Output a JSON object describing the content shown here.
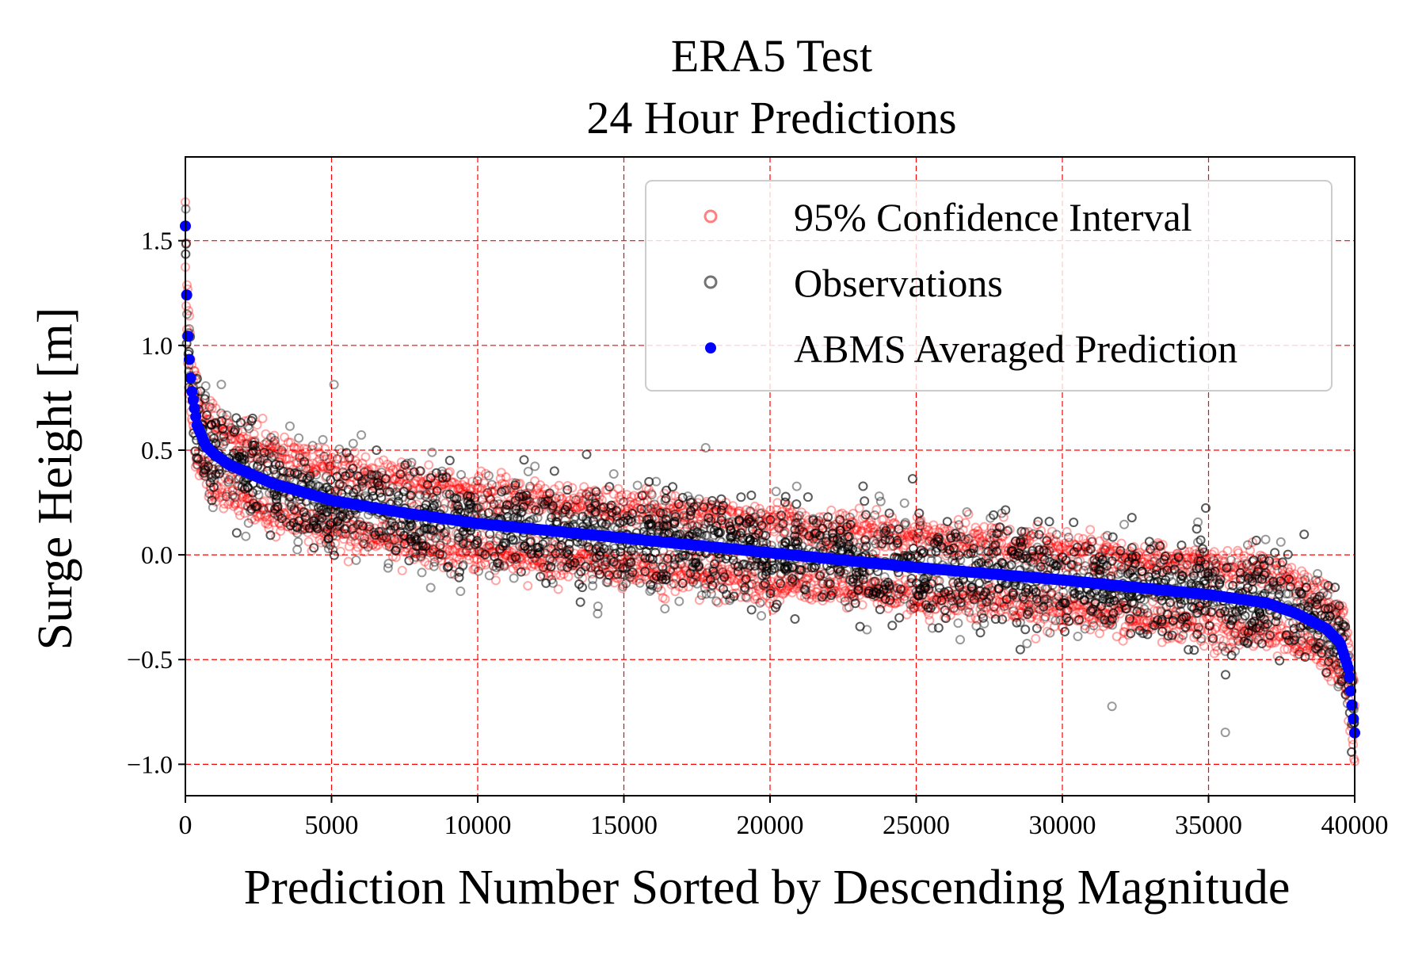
{
  "chart_data": {
    "type": "scatter",
    "title": [
      "ERA5 Test",
      "24 Hour Predictions"
    ],
    "xlabel": "Prediction Number Sorted by Descending Magnitude",
    "ylabel": "Surge Height [m]",
    "xlim": [
      0,
      40000
    ],
    "ylim": [
      -1.15,
      1.9
    ],
    "x_ticks": [
      0,
      5000,
      10000,
      15000,
      20000,
      25000,
      30000,
      35000,
      40000
    ],
    "x_tick_labels": [
      "0",
      "5000",
      "10000",
      "15000",
      "20000",
      "25000",
      "30000",
      "35000",
      "40000"
    ],
    "y_ticks": [
      -1.0,
      -0.5,
      0.0,
      0.5,
      1.0,
      1.5
    ],
    "y_tick_labels": [
      "−1.0",
      "−0.5",
      "0.0",
      "0.5",
      "1.0",
      "1.5"
    ],
    "grid": true,
    "grid_color": "#ff0000",
    "legend_position": "top-right",
    "n_points": 40000,
    "series": [
      {
        "name": "95% Confidence Interval",
        "color": "#ff0000",
        "marker": "hollow-circle",
        "alpha": 0.35,
        "band_halfwidth": 0.2
      },
      {
        "name": "Observations",
        "color": "#000000",
        "marker": "hollow-circle",
        "alpha": 0.4,
        "spread": 0.12
      },
      {
        "name": "ABMS Averaged Prediction",
        "color": "#0000ff",
        "marker": "filled-circle",
        "alpha": 1.0,
        "curve": {
          "x": [
            0,
            50,
            100,
            200,
            400,
            700,
            1000,
            1500,
            2000,
            3000,
            5000,
            7500,
            10000,
            15000,
            20000,
            25000,
            30000,
            35000,
            37000,
            38000,
            39000,
            39500,
            39800,
            40000
          ],
          "y": [
            1.57,
            1.2,
            1.0,
            0.8,
            0.62,
            0.52,
            0.48,
            0.43,
            0.4,
            0.34,
            0.26,
            0.2,
            0.15,
            0.08,
            0.01,
            -0.06,
            -0.12,
            -0.19,
            -0.23,
            -0.28,
            -0.35,
            -0.42,
            -0.55,
            -0.85
          ]
        }
      }
    ]
  }
}
